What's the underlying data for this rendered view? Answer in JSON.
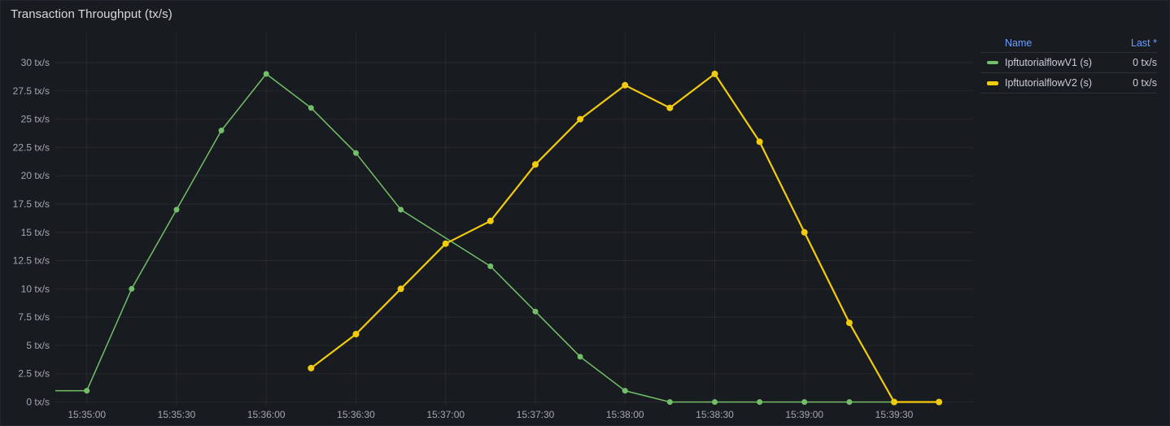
{
  "panel": {
    "title": "Transaction Throughput (tx/s)"
  },
  "legend": {
    "columns": [
      "Name",
      "Last *"
    ],
    "rows": [
      {
        "name": "IpftutorialflowV1 (s)",
        "last": "0 tx/s",
        "color": "#73BF69"
      },
      {
        "name": "IpftutorialflowV2 (s)",
        "last": "0 tx/s",
        "color": "#F2CC0C"
      }
    ]
  },
  "colors": {
    "background": "#181B1F",
    "grid": "rgba(204,204,220,0.08)",
    "axis_text": "rgba(204,204,220,0.78)",
    "link_blue": "#6E9FFF",
    "series_green": "#73BF69",
    "series_yellow": "#F2CC0C"
  },
  "chart_data": {
    "type": "line",
    "title": "Transaction Throughput (tx/s)",
    "unit": "tx/s",
    "grid": true,
    "legend_position": "right-table",
    "ylim": [
      0,
      30
    ],
    "yticks": [
      0,
      2.5,
      5,
      7.5,
      10,
      12.5,
      15,
      17.5,
      20,
      22.5,
      25,
      27.5,
      30
    ],
    "ytick_labels": [
      "0 tx/s",
      "2.5 tx/s",
      "5 tx/s",
      "7.5 tx/s",
      "10 tx/s",
      "12.5 tx/s",
      "15 tx/s",
      "17.5 tx/s",
      "20 tx/s",
      "22.5 tx/s",
      "25 tx/s",
      "27.5 tx/s",
      "30 tx/s"
    ],
    "xtick_labels": [
      "15:35:00",
      "15:35:30",
      "15:36:00",
      "15:36:30",
      "15:37:00",
      "15:37:30",
      "15:38:00",
      "15:38:30",
      "15:39:00",
      "15:39:30"
    ],
    "xticks_t": [
      0,
      30,
      60,
      90,
      120,
      150,
      180,
      210,
      240,
      270
    ],
    "x_window_seconds": [
      -10.53,
      296.4
    ],
    "x_time_reference": "15:35:00",
    "x_step_seconds": 15,
    "series": [
      {
        "name": "IpftutorialflowV1 (s)",
        "color": "#73BF69",
        "line_width": 1.5,
        "point_radius": 3.5,
        "points": [
          [
            -15,
            1
          ],
          [
            0,
            1
          ],
          [
            15,
            10
          ],
          [
            30,
            17
          ],
          [
            45,
            24
          ],
          [
            60,
            29
          ],
          [
            75,
            26
          ],
          [
            90,
            22
          ],
          [
            105,
            17
          ],
          [
            135,
            12
          ],
          [
            150,
            8
          ],
          [
            165,
            4
          ],
          [
            180,
            1
          ],
          [
            195,
            0
          ],
          [
            210,
            0
          ],
          [
            225,
            0
          ],
          [
            240,
            0
          ],
          [
            255,
            0
          ],
          [
            270,
            0
          ]
        ]
      },
      {
        "name": "IpftutorialflowV2 (s)",
        "color": "#F2CC0C",
        "line_width": 2.2,
        "point_radius": 4,
        "points": [
          [
            75,
            3
          ],
          [
            90,
            6
          ],
          [
            105,
            10
          ],
          [
            120,
            14
          ],
          [
            135,
            16
          ],
          [
            150,
            21
          ],
          [
            165,
            25
          ],
          [
            180,
            28
          ],
          [
            195,
            26
          ],
          [
            210,
            29
          ],
          [
            225,
            23
          ],
          [
            240,
            15
          ],
          [
            255,
            7
          ],
          [
            270,
            0
          ],
          [
            285,
            0
          ]
        ]
      }
    ]
  }
}
